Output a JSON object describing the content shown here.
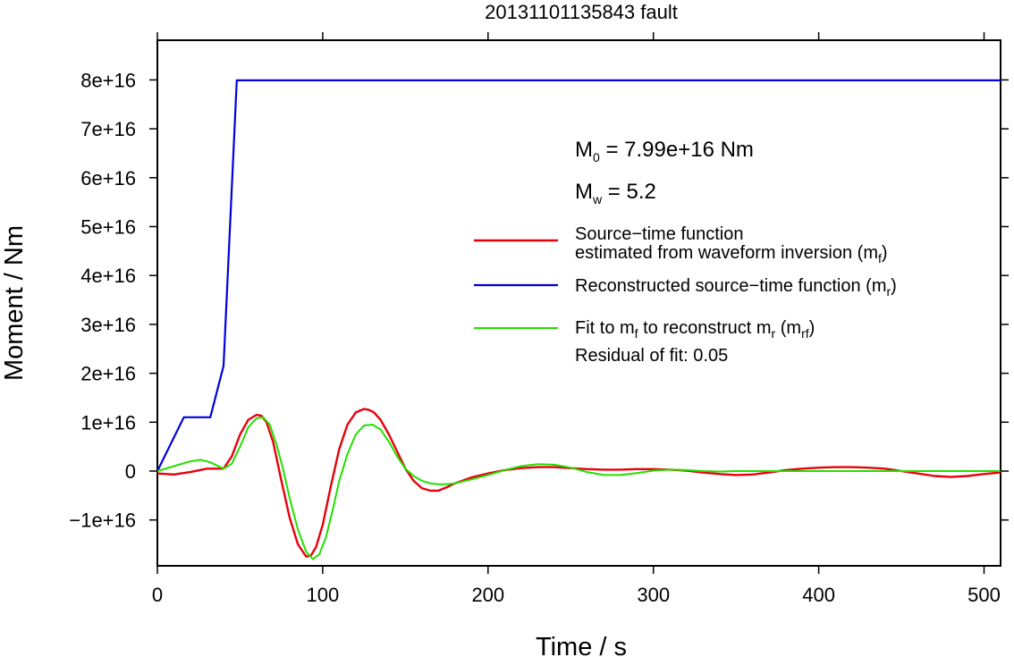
{
  "chart_data": {
    "type": "line",
    "title": "20131101135843 fault",
    "xlabel": "Time / s",
    "ylabel": "Moment / Nm",
    "xlim": [
      0,
      510
    ],
    "ylim": [
      -2e+16,
      8.8e+16
    ],
    "x_ticks": [
      0,
      100,
      200,
      300,
      400,
      500
    ],
    "x_tick_labels": [
      "0",
      "100",
      "200",
      "300",
      "400",
      "500"
    ],
    "y_ticks": [
      -1e+16,
      0,
      1e+16,
      2e+16,
      3e+16,
      4e+16,
      5e+16,
      6e+16,
      7e+16,
      8e+16
    ],
    "y_tick_labels": [
      "−1e+16",
      "0",
      "1e+16",
      "2e+16",
      "3e+16",
      "4e+16",
      "5e+16",
      "6e+16",
      "7e+16",
      "8e+16"
    ],
    "grid": false,
    "legend_position": "right",
    "annotations": {
      "m0": {
        "symbol": "M",
        "sub": "0",
        "text": " = 7.99e+16 Nm"
      },
      "mw": {
        "symbol": "M",
        "sub": "w",
        "text": " = 5.2"
      },
      "residual": "Residual of fit: 0.05"
    },
    "series": [
      {
        "key": "mf",
        "color": "#e8000b",
        "legend": {
          "line1": "Source−time function",
          "line2a": "estimated from waveform inversion (m",
          "line2sub": "f",
          "line2b": ")"
        },
        "x": [
          0,
          10,
          20,
          30,
          40,
          45,
          50,
          55,
          60,
          63,
          66,
          70,
          75,
          80,
          85,
          90,
          93,
          96,
          100,
          105,
          110,
          115,
          120,
          125,
          128,
          131,
          135,
          140,
          145,
          150,
          155,
          160,
          165,
          170,
          175,
          180,
          190,
          200,
          210,
          220,
          230,
          240,
          250,
          260,
          270,
          280,
          290,
          300,
          310,
          320,
          330,
          340,
          350,
          360,
          370,
          380,
          390,
          400,
          410,
          420,
          430,
          440,
          450,
          460,
          470,
          480,
          490,
          500,
          510
        ],
        "y": [
          -500000000000000.0,
          -700000000000000.0,
          -200000000000000.0,
          500000000000000.0,
          500000000000000.0,
          3000000000000000.0,
          7500000000000000.0,
          1.05e+16,
          1.15e+16,
          1.13e+16,
          1e+16,
          6000000000000000.0,
          -2000000000000000.0,
          -9500000000000000.0,
          -1.5e+16,
          -1.75e+16,
          -1.72e+16,
          -1.55e+16,
          -1.1e+16,
          -3000000000000000.0,
          4500000000000000.0,
          9500000000000000.0,
          1.2e+16,
          1.27e+16,
          1.25e+16,
          1.2e+16,
          1.05e+16,
          7500000000000000.0,
          4000000000000000.0,
          500000000000000.0,
          -2000000000000000.0,
          -3500000000000000.0,
          -4000000000000000.0,
          -4000000000000000.0,
          -3300000000000000.0,
          -2500000000000000.0,
          -1300000000000000.0,
          -500000000000000.0,
          200000000000000.0,
          600000000000000.0,
          800000000000000.0,
          800000000000000.0,
          600000000000000.0,
          400000000000000.0,
          300000000000000.0,
          300000000000000.0,
          400000000000000.0,
          400000000000000.0,
          300000000000000.0,
          100000000000000.0,
          -300000000000000.0,
          -600000000000000.0,
          -800000000000000.0,
          -700000000000000.0,
          -300000000000000.0,
          200000000000000.0,
          500000000000000.0,
          700000000000000.0,
          800000000000000.0,
          800000000000000.0,
          700000000000000.0,
          500000000000000.0,
          0.0,
          -500000000000000.0,
          -1000000000000000.0,
          -1200000000000000.0,
          -1000000000000000.0,
          -600000000000000.0,
          -300000000000000.0
        ]
      },
      {
        "key": "mr",
        "color": "#0000dd",
        "legend": {
          "line1a": "Reconstructed source−time function (m",
          "line1sub": "r",
          "line1b": ")"
        },
        "x": [
          0,
          16,
          32,
          40,
          48,
          510
        ],
        "y": [
          0,
          1.1e+16,
          1.1e+16,
          2.15e+16,
          7.99e+16,
          7.99e+16
        ]
      },
      {
        "key": "mrf",
        "color": "#22e000",
        "legend": {
          "line1a": "Fit to m",
          "line1sub1": "f",
          "line1b": " to reconstruct m",
          "line1sub2": "r",
          "line1c": " (m",
          "line1sub3": "rf",
          "line1d": ")"
        },
        "x": [
          0,
          10,
          20,
          26,
          32,
          40,
          45,
          50,
          55,
          60,
          64,
          68,
          72,
          76,
          80,
          85,
          90,
          94,
          98,
          102,
          106,
          110,
          115,
          120,
          125,
          130,
          135,
          140,
          145,
          150,
          155,
          160,
          165,
          170,
          175,
          180,
          190,
          200,
          210,
          220,
          230,
          240,
          250,
          260,
          270,
          280,
          290,
          300,
          310,
          320,
          330,
          340,
          350,
          360,
          370,
          380,
          390,
          400,
          410,
          420,
          430,
          440,
          450,
          460,
          470,
          480,
          490,
          500,
          510
        ],
        "y": [
          0,
          1000000000000000.0,
          2000000000000000.0,
          2300000000000000.0,
          1800000000000000.0,
          500000000000000.0,
          1500000000000000.0,
          5000000000000000.0,
          9000000000000000.0,
          1.08e+16,
          1.1e+16,
          9500000000000000.0,
          5500000000000000.0,
          500000000000000.0,
          -5500000000000000.0,
          -1.2e+16,
          -1.65e+16,
          -1.8e+16,
          -1.7e+16,
          -1.35e+16,
          -8000000000000000.0,
          -2000000000000000.0,
          3500000000000000.0,
          7500000000000000.0,
          9300000000000000.0,
          9500000000000000.0,
          8500000000000000.0,
          6000000000000000.0,
          3000000000000000.0,
          500000000000000.0,
          -1000000000000000.0,
          -2000000000000000.0,
          -2500000000000000.0,
          -2700000000000000.0,
          -2700000000000000.0,
          -2500000000000000.0,
          -1700000000000000.0,
          -800000000000000.0,
          200000000000000.0,
          1000000000000000.0,
          1400000000000000.0,
          1300000000000000.0,
          700000000000000.0,
          -200000000000000.0,
          -800000000000000.0,
          -800000000000000.0,
          -400000000000000.0,
          100000000000000.0,
          300000000000000.0,
          200000000000000.0,
          0.0,
          -100000000000000.0,
          0.0,
          0.0,
          0.0,
          0.0,
          0.0,
          0.0,
          0.0,
          0.0,
          0.0,
          0.0,
          0.0,
          0.0,
          0.0,
          0.0,
          0.0,
          0.0,
          0.0
        ]
      }
    ]
  }
}
